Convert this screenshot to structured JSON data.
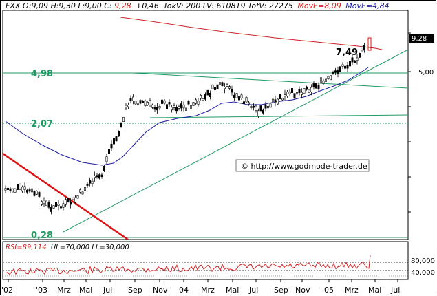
{
  "header": {
    "symbol_line": "FXX O:9,09 H:9,30 L:9,00 C:",
    "close": "9,28",
    "change": "+0,46",
    "volume_line": "TokV: 200 LV: 610819 TotV: 27275",
    "ma1": "MovE=8,09",
    "ma2": "MovE=4,84"
  },
  "price_tag": "9,28",
  "right_axis": {
    "label": "5,00"
  },
  "levels": {
    "high": "4,98",
    "mid": "2,07",
    "low": "0,28",
    "last": "7,49"
  },
  "copyright": "© http://www.godmode-trader.de",
  "rsi_header": {
    "label": "RSI=89,114",
    "bounds": "UL=70,000 LL=30,000"
  },
  "rsi_axis": {
    "upper": "80,000",
    "lower": "40,000"
  },
  "x_axis": [
    "'02",
    "'03",
    "Mrz",
    "Mai",
    "Jul",
    "Sep",
    "Nov",
    "'04",
    "Mrz",
    "Mai",
    "Jul",
    "Sep",
    "Nov",
    "'05",
    "Mrz",
    "Mai",
    "Jul"
  ],
  "colors": {
    "background": "#ffffff",
    "frame": "#000000",
    "ma_short": "#cc2222",
    "ma_long": "#1a1aa0",
    "trend_green": "#1f9a63",
    "downtrend_red": "#dd1111",
    "level_text": "#1f9a63",
    "candle": "#000000",
    "rsi_line": "#cc2222"
  },
  "chart_data": [
    {
      "type": "candlestick",
      "title": "",
      "x": [
        "'02",
        "'03",
        "Mrz",
        "Mai",
        "Jul",
        "Sep",
        "Nov",
        "'04",
        "Mrz",
        "Mai",
        "Jul",
        "Sep",
        "Nov",
        "'05",
        "Mrz",
        "Mai",
        "Jul"
      ],
      "ylim": [
        0.0,
        10.0
      ],
      "close": [
        1.5,
        1.7,
        1.0,
        1.3,
        2.2,
        4.3,
        4.0,
        3.3,
        3.7,
        4.3,
        3.0,
        3.3,
        4.0,
        4.6,
        6.7,
        7.6,
        9.28
      ],
      "levels": [
        4.98,
        2.07,
        0.28
      ],
      "annotation": "7,49",
      "series": [
        {
          "name": "MovE=8,09",
          "values": [
            null,
            null,
            null,
            null,
            null,
            5.5,
            5.6,
            5.7,
            5.8,
            5.9,
            6.0,
            6.1,
            6.4,
            6.8,
            7.2,
            7.8,
            8.09
          ]
        },
        {
          "name": "MovE=4,84",
          "values": [
            3.3,
            2.2,
            1.5,
            1.3,
            1.4,
            2.4,
            3.0,
            3.3,
            3.4,
            3.4,
            3.3,
            3.4,
            3.7,
            4.0,
            4.3,
            4.7,
            4.84
          ]
        }
      ]
    },
    {
      "type": "line",
      "title": "RSI",
      "ylim": [
        20,
        100
      ],
      "series": [
        {
          "name": "RSI=89,114",
          "values": [
            45,
            46,
            50,
            49,
            54,
            58,
            56,
            57,
            60,
            62,
            58,
            57,
            60,
            62,
            68,
            74,
            89.114
          ]
        }
      ],
      "thresholds": [
        70,
        30
      ]
    }
  ]
}
